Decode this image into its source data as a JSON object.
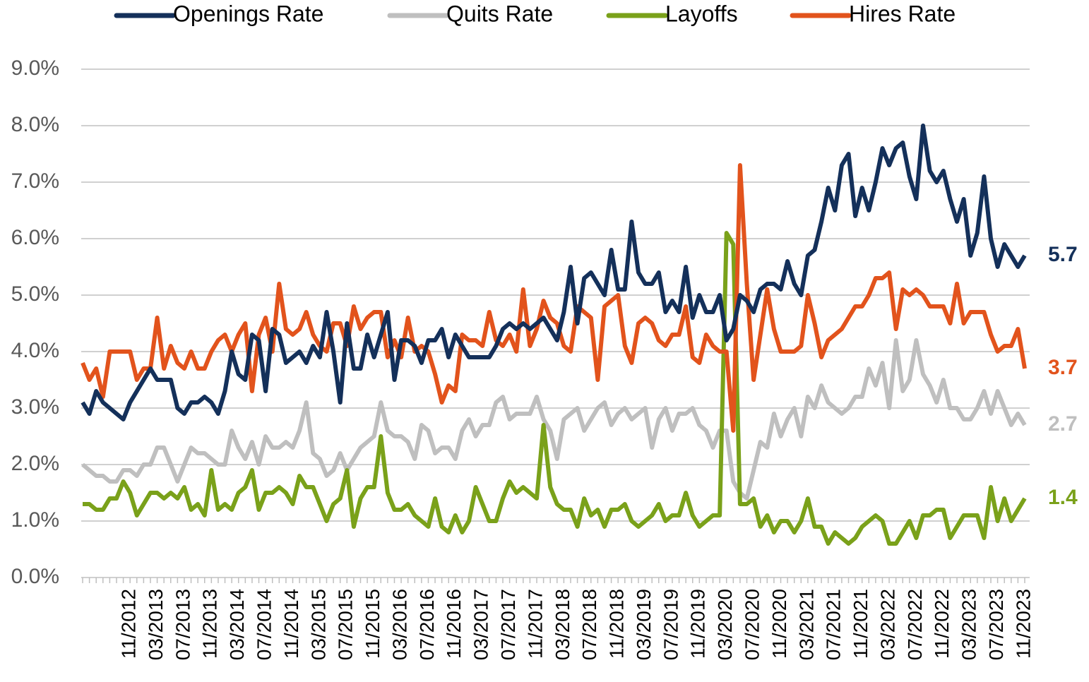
{
  "chart_data": {
    "type": "line",
    "categories": [
      null,
      null,
      null,
      null,
      null,
      null,
      null,
      "11/2012",
      null,
      null,
      null,
      "03/2013",
      null,
      null,
      null,
      "07/2013",
      null,
      null,
      null,
      "11/2013",
      null,
      null,
      null,
      "03/2014",
      null,
      null,
      null,
      "07/2014",
      null,
      null,
      null,
      "11/2014",
      null,
      null,
      null,
      "03/2015",
      null,
      null,
      null,
      "07/2015",
      null,
      null,
      null,
      "11/2015",
      null,
      null,
      null,
      "03/2016",
      null,
      null,
      null,
      "07/2016",
      null,
      null,
      null,
      "11/2016",
      null,
      null,
      null,
      "03/2017",
      null,
      null,
      null,
      "07/2017",
      null,
      null,
      null,
      "11/2017",
      null,
      null,
      null,
      "03/2018",
      null,
      null,
      null,
      "07/2018",
      null,
      null,
      null,
      "11/2018",
      null,
      null,
      null,
      "03/2019",
      null,
      null,
      null,
      "07/2019",
      null,
      null,
      null,
      "11/2019",
      null,
      null,
      null,
      "03/2020",
      null,
      null,
      null,
      "07/2020",
      null,
      null,
      null,
      "11/2020",
      null,
      null,
      null,
      "03/2021",
      null,
      null,
      null,
      "07/2021",
      null,
      null,
      null,
      "11/2021",
      null,
      null,
      null,
      "03/2022",
      null,
      null,
      null,
      "07/2022",
      null,
      null,
      null,
      "11/2022",
      null,
      null,
      null,
      "03/2023",
      null,
      null,
      null,
      "07/2023",
      null,
      null,
      null,
      "11/2023"
    ],
    "series": [
      {
        "name": "Openings Rate",
        "color": "#14305a",
        "values": [
          3.1,
          2.9,
          3.3,
          3.1,
          3.0,
          2.9,
          2.8,
          3.1,
          3.3,
          3.5,
          3.7,
          3.5,
          3.5,
          3.5,
          3.0,
          2.9,
          3.1,
          3.1,
          3.2,
          3.1,
          2.9,
          3.3,
          4.0,
          3.6,
          3.5,
          4.3,
          4.2,
          3.3,
          4.4,
          4.3,
          3.8,
          3.9,
          4.0,
          3.8,
          4.1,
          3.9,
          4.7,
          4.0,
          3.1,
          4.5,
          3.7,
          3.7,
          4.3,
          3.9,
          4.3,
          4.7,
          3.5,
          4.2,
          4.2,
          4.1,
          3.8,
          4.2,
          4.2,
          4.4,
          3.9,
          4.3,
          4.1,
          3.9,
          3.9,
          3.9,
          3.9,
          4.1,
          4.4,
          4.5,
          4.4,
          4.5,
          4.4,
          4.5,
          4.6,
          4.4,
          4.2,
          4.7,
          5.5,
          4.5,
          5.3,
          5.4,
          5.2,
          5.0,
          5.8,
          5.1,
          5.1,
          6.3,
          5.4,
          5.2,
          5.2,
          5.4,
          4.7,
          4.9,
          4.7,
          5.5,
          4.6,
          5.0,
          4.7,
          4.7,
          5.0,
          4.2,
          4.4,
          5.0,
          4.9,
          4.7,
          5.1,
          5.2,
          5.2,
          5.1,
          5.6,
          5.2,
          5.0,
          5.7,
          5.8,
          6.3,
          6.9,
          6.5,
          7.3,
          7.5,
          6.4,
          6.9,
          6.5,
          7.0,
          7.6,
          7.3,
          7.6,
          7.7,
          7.1,
          6.7,
          8.0,
          7.2,
          7.0,
          7.2,
          6.7,
          6.3,
          6.7,
          5.7,
          6.1,
          7.1,
          6.0,
          5.5,
          5.9,
          5.7,
          5.5,
          5.7
        ]
      },
      {
        "name": "Quits Rate",
        "color": "#bfbfbf",
        "values": [
          2.0,
          1.9,
          1.8,
          1.8,
          1.7,
          1.7,
          1.9,
          1.9,
          1.8,
          2.0,
          2.0,
          2.3,
          2.3,
          2.0,
          1.7,
          2.0,
          2.3,
          2.2,
          2.2,
          2.1,
          2.0,
          2.0,
          2.6,
          2.3,
          2.1,
          2.4,
          2.0,
          2.5,
          2.3,
          2.3,
          2.4,
          2.3,
          2.6,
          3.1,
          2.2,
          2.1,
          1.8,
          1.9,
          2.2,
          1.9,
          2.1,
          2.3,
          2.4,
          2.5,
          3.1,
          2.6,
          2.5,
          2.5,
          2.4,
          2.1,
          2.7,
          2.6,
          2.2,
          2.3,
          2.3,
          2.1,
          2.6,
          2.8,
          2.5,
          2.7,
          2.7,
          3.1,
          3.2,
          2.8,
          2.9,
          2.9,
          2.9,
          3.2,
          2.8,
          2.6,
          2.1,
          2.8,
          2.9,
          3.0,
          2.6,
          2.8,
          3.0,
          3.1,
          2.7,
          2.9,
          3.0,
          2.8,
          2.9,
          3.0,
          2.3,
          2.8,
          3.0,
          2.6,
          2.9,
          2.9,
          3.0,
          2.7,
          2.6,
          2.3,
          2.6,
          2.6,
          1.7,
          1.5,
          1.4,
          1.9,
          2.4,
          2.3,
          2.9,
          2.5,
          2.8,
          3.0,
          2.5,
          3.2,
          3.0,
          3.4,
          3.1,
          3.0,
          2.9,
          3.0,
          3.2,
          3.2,
          3.7,
          3.4,
          3.8,
          3.0,
          4.2,
          3.3,
          3.5,
          4.2,
          3.6,
          3.4,
          3.1,
          3.5,
          3.0,
          3.0,
          2.8,
          2.8,
          3.0,
          3.3,
          2.9,
          3.3,
          3.0,
          2.7,
          2.9,
          2.7
        ]
      },
      {
        "name": "Layoffs",
        "color": "#7aa11a",
        "values": [
          1.3,
          1.3,
          1.2,
          1.2,
          1.4,
          1.4,
          1.7,
          1.5,
          1.1,
          1.3,
          1.5,
          1.5,
          1.4,
          1.5,
          1.4,
          1.6,
          1.2,
          1.3,
          1.1,
          1.9,
          1.2,
          1.3,
          1.2,
          1.5,
          1.6,
          1.9,
          1.2,
          1.5,
          1.5,
          1.6,
          1.5,
          1.3,
          1.8,
          1.6,
          1.6,
          1.3,
          1.0,
          1.3,
          1.4,
          1.9,
          0.9,
          1.4,
          1.6,
          1.6,
          2.5,
          1.5,
          1.2,
          1.2,
          1.3,
          1.1,
          1.0,
          0.9,
          1.4,
          0.9,
          0.8,
          1.1,
          0.8,
          1.0,
          1.6,
          1.3,
          1.0,
          1.0,
          1.4,
          1.7,
          1.5,
          1.6,
          1.5,
          1.4,
          2.7,
          1.6,
          1.3,
          1.2,
          1.2,
          0.9,
          1.4,
          1.1,
          1.2,
          0.9,
          1.2,
          1.2,
          1.3,
          1.0,
          0.9,
          1.0,
          1.1,
          1.3,
          1.0,
          1.1,
          1.1,
          1.5,
          1.1,
          0.9,
          1.0,
          1.1,
          1.1,
          6.1,
          5.9,
          1.3,
          1.3,
          1.4,
          0.9,
          1.1,
          0.8,
          1.0,
          1.0,
          0.8,
          1.0,
          1.4,
          0.9,
          0.9,
          0.6,
          0.8,
          0.7,
          0.6,
          0.7,
          0.9,
          1.0,
          1.1,
          1.0,
          0.6,
          0.6,
          0.8,
          1.0,
          0.7,
          1.1,
          1.1,
          1.2,
          1.2,
          0.7,
          0.9,
          1.1,
          1.1,
          1.1,
          0.7,
          1.6,
          1.0,
          1.4,
          1.0,
          1.2,
          1.4
        ]
      },
      {
        "name": "Hires Rate",
        "color": "#e2531c",
        "values": [
          3.8,
          3.5,
          3.7,
          3.2,
          4.0,
          4.0,
          4.0,
          4.0,
          3.5,
          3.7,
          3.7,
          4.6,
          3.7,
          4.1,
          3.8,
          3.7,
          4.0,
          3.7,
          3.7,
          4.0,
          4.2,
          4.3,
          4.0,
          4.3,
          4.5,
          3.3,
          4.3,
          4.6,
          4.0,
          5.2,
          4.4,
          4.3,
          4.4,
          4.7,
          4.3,
          4.1,
          4.0,
          4.5,
          4.5,
          4.1,
          4.8,
          4.4,
          4.6,
          4.7,
          4.7,
          3.9,
          4.2,
          3.9,
          4.6,
          4.0,
          4.1,
          4.0,
          3.6,
          3.1,
          3.4,
          3.3,
          4.3,
          4.2,
          4.2,
          4.1,
          4.7,
          4.2,
          4.1,
          4.3,
          4.0,
          5.1,
          4.1,
          4.4,
          4.9,
          4.6,
          4.5,
          4.1,
          4.0,
          4.8,
          4.7,
          4.6,
          3.5,
          4.8,
          4.9,
          5.0,
          4.1,
          3.8,
          4.5,
          4.6,
          4.5,
          4.2,
          4.1,
          4.3,
          4.3,
          4.8,
          3.9,
          3.8,
          4.3,
          4.1,
          4.0,
          4.0,
          2.6,
          7.3,
          5.2,
          3.5,
          4.3,
          5.1,
          4.4,
          4.0,
          4.0,
          4.0,
          4.1,
          5.0,
          4.5,
          3.9,
          4.2,
          4.3,
          4.4,
          4.6,
          4.8,
          4.8,
          5.0,
          5.3,
          5.3,
          5.4,
          4.4,
          5.1,
          5.0,
          5.1,
          5.0,
          4.8,
          4.8,
          4.8,
          4.5,
          5.2,
          4.5,
          4.7,
          4.7,
          4.7,
          4.3,
          4.0,
          4.1,
          4.1,
          4.4,
          3.7
        ]
      }
    ],
    "ylim": [
      0,
      9
    ],
    "yticks": [
      {
        "value": 0,
        "label": "0.0%"
      },
      {
        "value": 1,
        "label": "1.0%"
      },
      {
        "value": 2,
        "label": "2.0%"
      },
      {
        "value": 3,
        "label": "3.0%"
      },
      {
        "value": 4,
        "label": "4.0%"
      },
      {
        "value": 5,
        "label": "5.0%"
      },
      {
        "value": 6,
        "label": "6.0%"
      },
      {
        "value": 7,
        "label": "7.0%"
      },
      {
        "value": 8,
        "label": "8.0%"
      },
      {
        "value": 9,
        "label": "9.0%"
      }
    ],
    "grid": true,
    "legend": "top",
    "label_last": true
  }
}
